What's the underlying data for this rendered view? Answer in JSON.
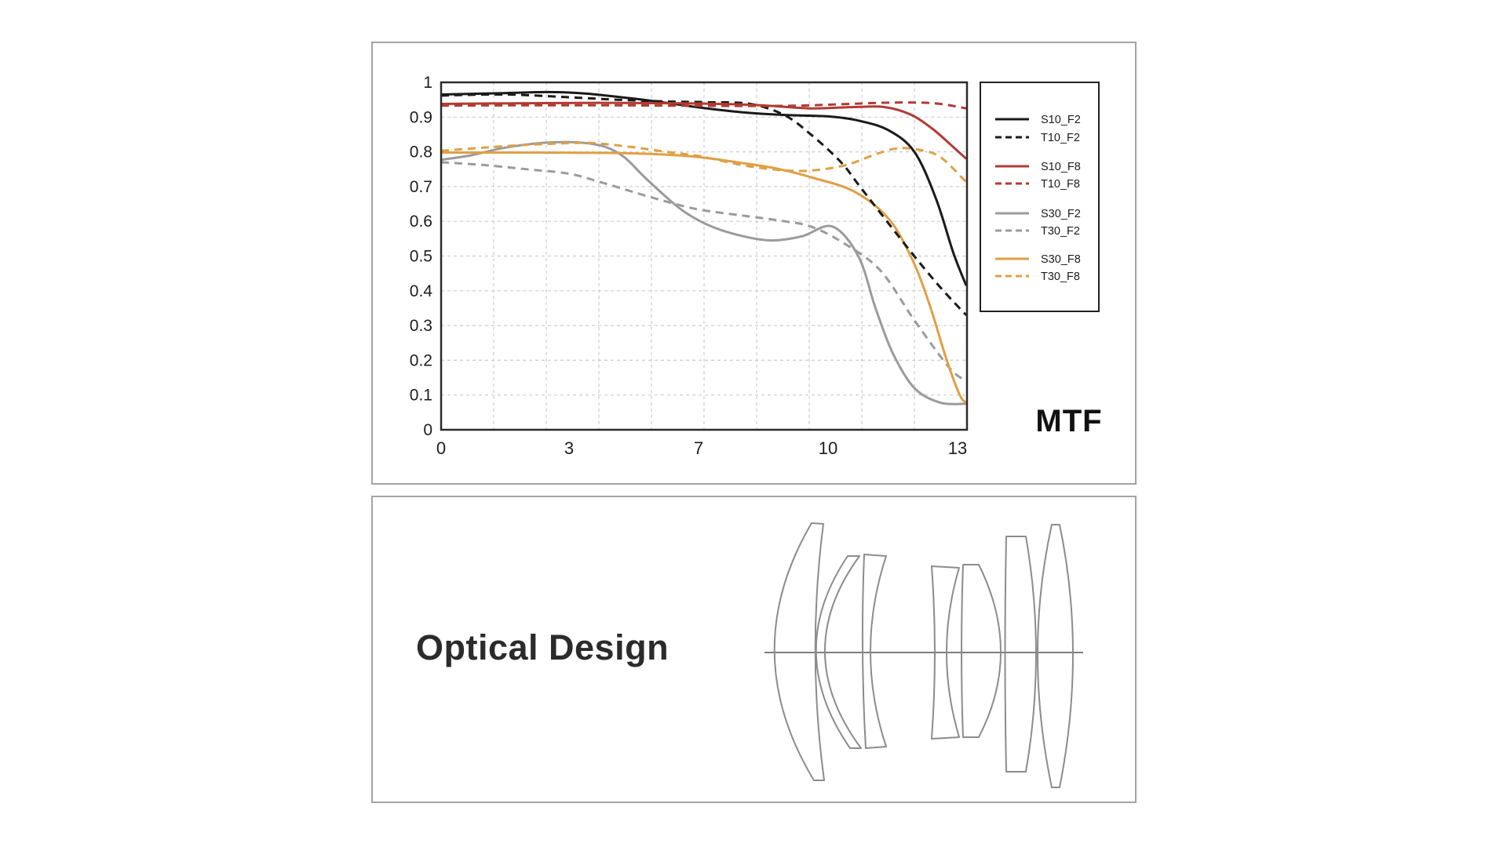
{
  "mtf": {
    "title": "MTF"
  },
  "optical": {
    "title": "Optical Design"
  },
  "chart_data": {
    "type": "line",
    "title": "MTF",
    "xlabel": "",
    "ylabel": "",
    "ylim": [
      0,
      1
    ],
    "xlim": [
      0,
      13.2
    ],
    "grid": true,
    "legend_position": "right",
    "x_ticks": [
      0,
      3,
      7,
      10,
      13
    ],
    "y_tick_labels": [
      "1",
      "0.9",
      "0.8",
      "0.7",
      "0.6",
      "0.5",
      "0.4",
      "0.3",
      "0.2",
      "0.1",
      "0"
    ],
    "y_tick_values": [
      1,
      0.9,
      0.8,
      0.7,
      0.6,
      0.5,
      0.4,
      0.3,
      0.2,
      0.1,
      0
    ],
    "colors": {
      "black": "#1a1a1a",
      "red": "#b23b34",
      "gray": "#9b9b9b",
      "orange": "#dfa044"
    },
    "series": [
      {
        "name": "S30_F2",
        "color": "#9b9b9b",
        "dash": false,
        "points": [
          [
            0,
            0.777
          ],
          [
            0.7,
            0.79
          ],
          [
            1.5,
            0.812
          ],
          [
            2.4,
            0.826
          ],
          [
            3.3,
            0.827
          ],
          [
            4.1,
            0.815
          ],
          [
            4.7,
            0.785
          ],
          [
            5.3,
            0.73
          ],
          [
            6,
            0.67
          ],
          [
            6.6,
            0.625
          ],
          [
            7.3,
            0.585
          ],
          [
            8,
            0.558
          ],
          [
            8.7,
            0.545
          ],
          [
            9.4,
            0.557
          ],
          [
            10.1,
            0.585
          ],
          [
            10.7,
            0.5
          ],
          [
            11.1,
            0.35
          ],
          [
            11.5,
            0.22
          ],
          [
            12,
            0.12
          ],
          [
            12.6,
            0.078
          ],
          [
            13.2,
            0.075
          ]
        ]
      },
      {
        "name": "T30_F2",
        "color": "#9b9b9b",
        "dash": true,
        "points": [
          [
            0,
            0.77
          ],
          [
            1,
            0.762
          ],
          [
            2,
            0.75
          ],
          [
            3,
            0.737
          ],
          [
            4,
            0.712
          ],
          [
            5,
            0.684
          ],
          [
            6,
            0.657
          ],
          [
            7,
            0.634
          ],
          [
            8,
            0.617
          ],
          [
            9,
            0.6
          ],
          [
            9.6,
            0.585
          ],
          [
            10.3,
            0.542
          ],
          [
            11.2,
            0.46
          ],
          [
            12,
            0.315
          ],
          [
            12.8,
            0.18
          ],
          [
            13.2,
            0.14
          ]
        ]
      },
      {
        "name": "S30_F8",
        "color": "#dfa044",
        "dash": false,
        "points": [
          [
            0,
            0.798
          ],
          [
            2,
            0.798
          ],
          [
            4,
            0.797
          ],
          [
            5.5,
            0.794
          ],
          [
            7,
            0.785
          ],
          [
            8,
            0.768
          ],
          [
            8.8,
            0.752
          ],
          [
            9.6,
            0.727
          ],
          [
            10.6,
            0.686
          ],
          [
            11.4,
            0.608
          ],
          [
            11.95,
            0.49
          ],
          [
            12.35,
            0.36
          ],
          [
            12.75,
            0.2
          ],
          [
            13.05,
            0.1
          ],
          [
            13.2,
            0.078
          ]
        ]
      },
      {
        "name": "T30_F8",
        "color": "#dfa044",
        "dash": true,
        "points": [
          [
            0,
            0.803
          ],
          [
            1,
            0.812
          ],
          [
            2,
            0.82
          ],
          [
            3,
            0.825
          ],
          [
            3.8,
            0.825
          ],
          [
            5,
            0.813
          ],
          [
            6,
            0.8
          ],
          [
            7,
            0.788
          ],
          [
            8,
            0.762
          ],
          [
            8.7,
            0.75
          ],
          [
            9.3,
            0.745
          ],
          [
            9.9,
            0.75
          ],
          [
            10.5,
            0.765
          ],
          [
            11.1,
            0.793
          ],
          [
            11.6,
            0.81
          ],
          [
            12.1,
            0.806
          ],
          [
            12.6,
            0.785
          ],
          [
            13.2,
            0.713
          ]
        ]
      },
      {
        "name": "S10_F2",
        "color": "#1a1a1a",
        "dash": false,
        "points": [
          [
            0,
            0.965
          ],
          [
            1.5,
            0.969
          ],
          [
            2.5,
            0.972
          ],
          [
            3.5,
            0.968
          ],
          [
            5,
            0.953
          ],
          [
            6,
            0.941
          ],
          [
            7,
            0.928
          ],
          [
            8,
            0.914
          ],
          [
            9,
            0.906
          ],
          [
            10,
            0.902
          ],
          [
            10.7,
            0.89
          ],
          [
            11.4,
            0.862
          ],
          [
            12,
            0.8
          ],
          [
            12.5,
            0.665
          ],
          [
            12.9,
            0.51
          ],
          [
            13.2,
            0.415
          ]
        ]
      },
      {
        "name": "T10_F2",
        "color": "#1a1a1a",
        "dash": true,
        "points": [
          [
            0,
            0.962
          ],
          [
            1.5,
            0.965
          ],
          [
            3,
            0.957
          ],
          [
            4.5,
            0.95
          ],
          [
            6,
            0.945
          ],
          [
            7.2,
            0.943
          ],
          [
            8.2,
            0.938
          ],
          [
            9,
            0.905
          ],
          [
            9.6,
            0.85
          ],
          [
            10.3,
            0.77
          ],
          [
            10.8,
            0.69
          ],
          [
            11.9,
            0.515
          ],
          [
            12.6,
            0.41
          ],
          [
            13.2,
            0.33
          ]
        ]
      },
      {
        "name": "S10_F8",
        "color": "#b23b34",
        "dash": false,
        "points": [
          [
            0,
            0.938
          ],
          [
            2,
            0.94
          ],
          [
            4,
            0.941
          ],
          [
            6,
            0.94
          ],
          [
            7.5,
            0.938
          ],
          [
            8.6,
            0.933
          ],
          [
            9.6,
            0.925
          ],
          [
            10.6,
            0.929
          ],
          [
            11.3,
            0.929
          ],
          [
            11.9,
            0.908
          ],
          [
            12.4,
            0.868
          ],
          [
            12.8,
            0.825
          ],
          [
            13.2,
            0.78
          ]
        ]
      },
      {
        "name": "T10_F8",
        "color": "#b23b34",
        "dash": true,
        "points": [
          [
            0,
            0.933
          ],
          [
            2,
            0.934
          ],
          [
            4,
            0.934
          ],
          [
            6,
            0.933
          ],
          [
            8,
            0.932
          ],
          [
            9.3,
            0.933
          ],
          [
            10.3,
            0.937
          ],
          [
            11.2,
            0.941
          ],
          [
            12,
            0.942
          ],
          [
            12.6,
            0.938
          ],
          [
            13.2,
            0.925
          ]
        ]
      }
    ],
    "legend": [
      "S10_F2",
      "T10_F2",
      "S10_F8",
      "T10_F8",
      "S30_F2",
      "T30_F2",
      "S30_F8",
      "T30_F8"
    ]
  }
}
